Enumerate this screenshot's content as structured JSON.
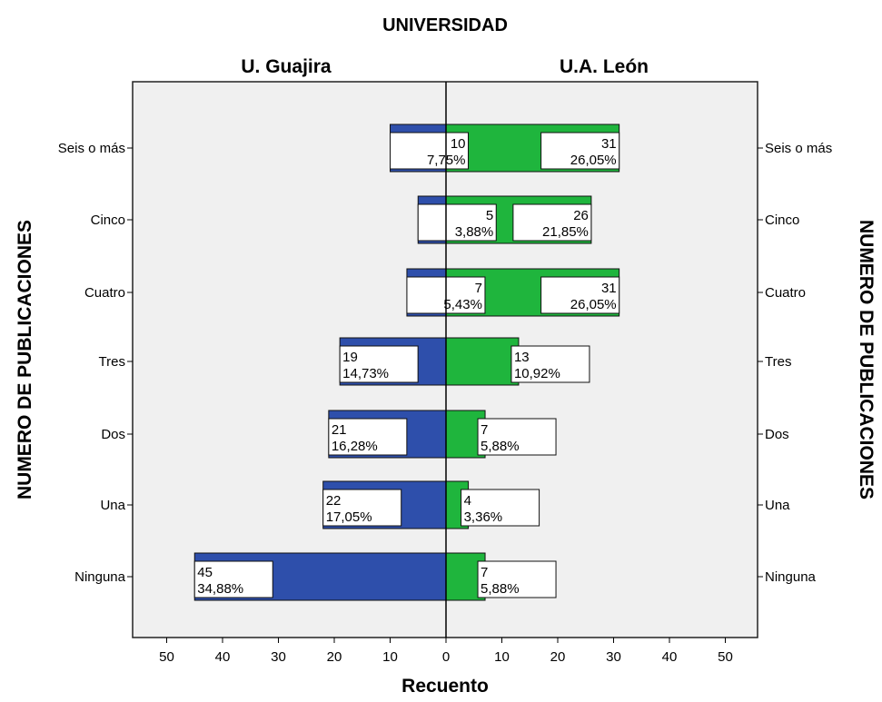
{
  "chart_data": {
    "type": "bar",
    "title": "UNIVERSIDAD",
    "xlabel": "Recuento",
    "ylabel": "NUMERO DE PUBLICACIONES",
    "categories": [
      "Seis o más",
      "Cinco",
      "Cuatro",
      "Tres",
      "Dos",
      "Una",
      "Ninguna"
    ],
    "series": [
      {
        "name": "U. Guajira",
        "color": "#2e4fab",
        "values": [
          10,
          5,
          7,
          19,
          21,
          22,
          45
        ],
        "percents": [
          "7,75%",
          "3,88%",
          "5,43%",
          "14,73%",
          "16,28%",
          "17,05%",
          "34,88%"
        ]
      },
      {
        "name": "U.A. León",
        "color": "#1fb53d",
        "values": [
          31,
          26,
          31,
          13,
          7,
          4,
          7
        ],
        "percents": [
          "26,05%",
          "21,85%",
          "26,05%",
          "10,92%",
          "5,88%",
          "3,36%",
          "5,88%"
        ]
      }
    ],
    "xticks": [
      50,
      40,
      30,
      20,
      10,
      0,
      10,
      20,
      30,
      40,
      50
    ],
    "xlim": [
      -55,
      55
    ],
    "grid": false,
    "plot_background": "#f0f0f0"
  }
}
